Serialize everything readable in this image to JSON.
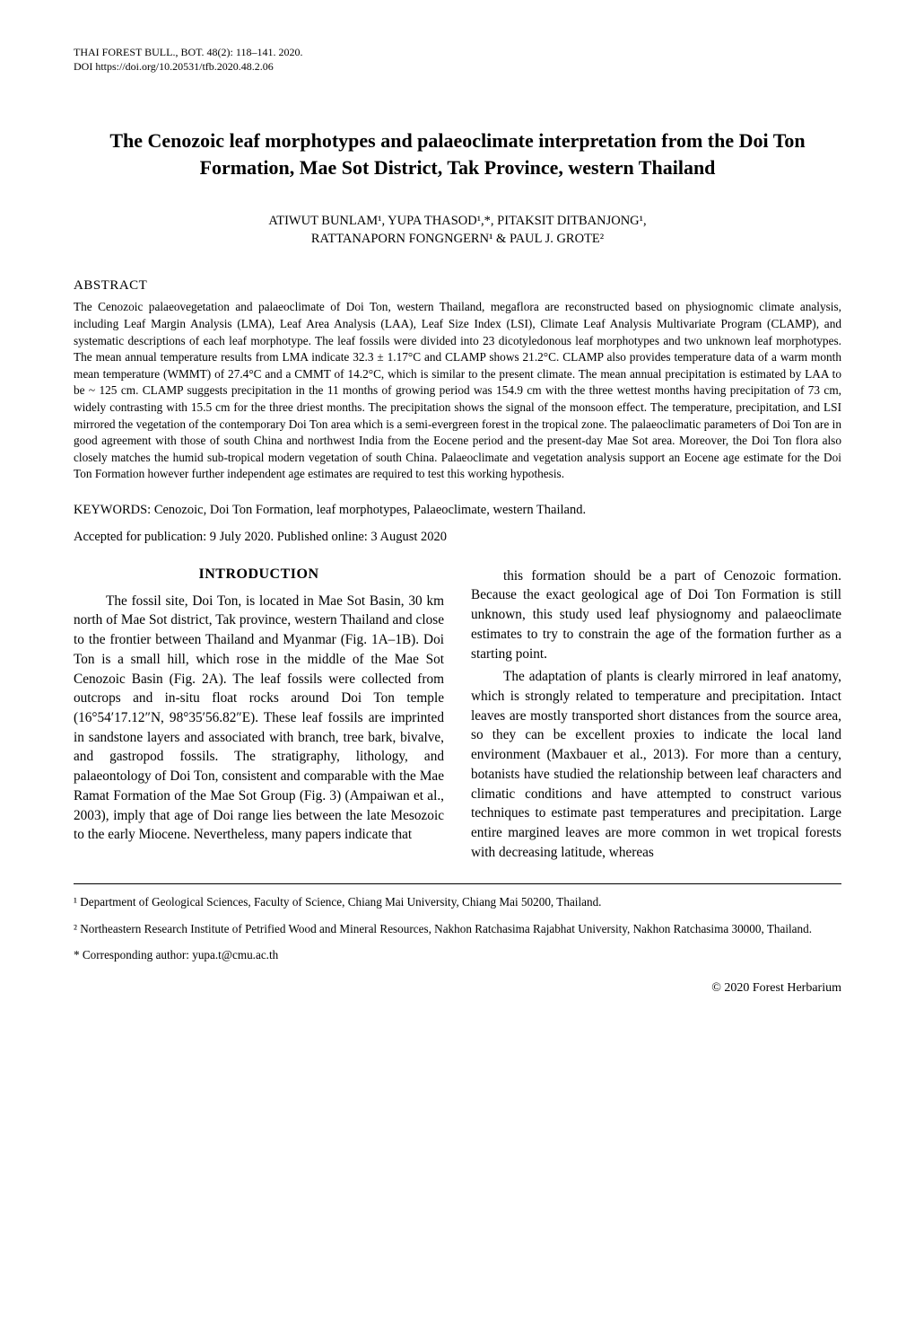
{
  "runningHead": {
    "journal": "THAI FOREST BULL., BOT. 48(2): 118–141. 2020.",
    "doi": "DOI  https://doi.org/10.20531/tfb.2020.48.2.06"
  },
  "title": "The Cenozoic leaf morphotypes and palaeoclimate interpretation from the Doi Ton Formation, Mae Sot District, Tak Province, western Thailand",
  "authorsLine1": "ATIWUT BUNLAM¹, YUPA THASOD¹,*, PITAKSIT DITBANJONG¹,",
  "authorsLine2": "RATTANAPORN FONGNGERN¹ & PAUL J. GROTE²",
  "abstractHeading": "ABSTRACT",
  "abstractBody": "The Cenozoic palaeovegetation and palaeoclimate of Doi Ton, western Thailand, megaflora are reconstructed based on physiognomic climate analysis, including Leaf Margin Analysis (LMA), Leaf Area Analysis (LAA), Leaf Size Index (LSI), Climate Leaf Analysis Multivariate Program (CLAMP), and systematic descriptions of each leaf morphotype. The leaf fossils were divided into 23 dicotyledonous leaf morphotypes and two unknown leaf morphotypes. The mean annual temperature results from LMA indicate 32.3 ± 1.17°C and CLAMP shows 21.2°C. CLAMP also provides temperature data of a warm month mean temperature (WMMT) of 27.4°C and a CMMT of 14.2°C, which is similar to the present climate. The mean annual precipitation is estimated by LAA to be ~ 125 cm. CLAMP suggests precipitation in the 11 months of growing period was 154.9 cm with the three wettest months having precipitation of 73 cm, widely contrasting with 15.5 cm for the three driest months. The precipitation shows the signal of the monsoon effect. The temperature, precipitation, and LSI mirrored the vegetation of the contemporary Doi Ton area which is a semi-evergreen forest in the tropical zone. The palaeoclimatic parameters of Doi Ton are in good agreement with those of south China and northwest India from the Eocene period and the present-day Mae Sot area. Moreover, the Doi Ton flora also closely matches the humid sub-tropical modern vegetation of south China. Palaeoclimate and vegetation analysis support an Eocene age estimate for the Doi Ton Formation however further independent age estimates are required to test this working hypothesis.",
  "keywordsLabel": "KEYWORDS: ",
  "keywordsText": "Cenozoic, Doi Ton Formation, leaf morphotypes, Palaeoclimate, western Thailand.",
  "acceptedLine": "Accepted for publication: 9 July 2020. Published online: 3 August 2020",
  "introductionHeading": "INTRODUCTION",
  "leftPara1": "The fossil site, Doi Ton, is located in Mae Sot Basin, 30 km north of Mae Sot district, Tak province, western Thailand and close to the frontier between Thailand and Myanmar (Fig. 1A–1B). Doi Ton is a small hill, which rose in the middle of the Mae Sot Cenozoic Basin (Fig. 2A). The leaf fossils were collected from outcrops and in-situ float rocks around Doi Ton temple (16°54′17.12″N, 98°35′56.82″E). These leaf fossils are imprinted in sandstone layers and associated with branch, tree bark, bivalve, and gastropod fossils. The stratigraphy, lithology, and palaeontology of Doi Ton, consistent and comparable with the Mae Ramat Formation of the Mae Sot Group (Fig. 3) (Ampaiwan et al., 2003), imply that age of Doi range lies between the late Mesozoic to the early Miocene. Nevertheless, many papers indicate that",
  "rightPara1": "this formation should be a part of Cenozoic formation. Because the exact geological age of Doi Ton Formation is still unknown, this study used leaf physiognomy and palaeoclimate estimates to try to constrain the age of the formation further as a starting point.",
  "rightPara2": "The adaptation of plants is clearly mirrored in leaf anatomy, which is strongly related to temperature and precipitation. Intact leaves are mostly transported short distances from the source area, so they can be excellent proxies to indicate the local land environment (Maxbauer et al., 2013). For more than a century, botanists have studied the relationship between leaf characters and climatic conditions and have attempted to construct various techniques to estimate past temperatures and precipitation. Large entire margined leaves are more common in wet tropical forests with decreasing latitude, whereas",
  "footnote1": "¹ Department of Geological Sciences, Faculty of Science, Chiang Mai University, Chiang Mai 50200, Thailand.",
  "footnote2": "² Northeastern Research Institute of Petrified Wood and Mineral Resources, Nakhon Ratchasima Rajabhat University, Nakhon Ratchasima 30000, Thailand.",
  "footnote3": "* Corresponding author: yupa.t@cmu.ac.th",
  "copyright": "© 2020 Forest Herbarium"
}
